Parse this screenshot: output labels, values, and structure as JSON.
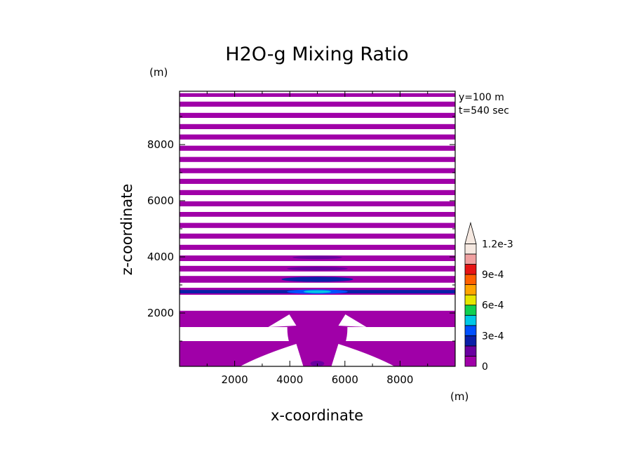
{
  "chart_data": {
    "type": "heatmap",
    "title": "H2O-g Mixing Ratio",
    "xlabel": "x-coordinate",
    "ylabel": "z-coordinate",
    "x_unit": "(m)",
    "y_unit": "(m)",
    "annotation_lines": [
      "y=100 m",
      "t=540 sec"
    ],
    "xlim": [
      0,
      10000
    ],
    "ylim": [
      100,
      9900
    ],
    "x_ticks": [
      2000,
      4000,
      6000,
      8000
    ],
    "y_ticks": [
      2000,
      4000,
      6000,
      8000
    ],
    "x_tick_labels": [
      "2000",
      "4000",
      "6000",
      "8000"
    ],
    "y_tick_labels": [
      "2000",
      "4000",
      "6000",
      "8000"
    ],
    "colorbar": {
      "levels": [
        0,
        0.00015,
        0.0003,
        0.00045,
        0.0006,
        0.00075,
        0.0009,
        0.00105,
        0.0012,
        0.00135
      ],
      "colors": [
        "#a000a8",
        "#6a00a0",
        "#0a1fa8",
        "#0050ff",
        "#00c8e6",
        "#10d050",
        "#e6e600",
        "#ffa500",
        "#ff6000",
        "#e61414",
        "#f0a0a0",
        "#f5e8e0"
      ],
      "labels": [
        "0",
        "3e-4",
        "6e-4",
        "9e-4",
        "1.2e-3"
      ],
      "extend": "max"
    },
    "bands": [
      {
        "z": [
          9700,
          9830
        ],
        "color": "#a000a8"
      },
      {
        "z": [
          9350,
          9530
        ],
        "color": "#a000a8"
      },
      {
        "z": [
          8950,
          9130
        ],
        "color": "#a000a8"
      },
      {
        "z": [
          8550,
          8730
        ],
        "color": "#a000a8"
      },
      {
        "z": [
          8180,
          8360
        ],
        "color": "#a000a8"
      },
      {
        "z": [
          7780,
          7960
        ],
        "color": "#a000a8"
      },
      {
        "z": [
          7380,
          7560
        ],
        "color": "#a000a8"
      },
      {
        "z": [
          6980,
          7160
        ],
        "color": "#a000a8"
      },
      {
        "z": [
          6600,
          6780
        ],
        "color": "#a000a8"
      },
      {
        "z": [
          6200,
          6380
        ],
        "color": "#a000a8"
      },
      {
        "z": [
          5800,
          5980
        ],
        "color": "#a000a8"
      },
      {
        "z": [
          5430,
          5600
        ],
        "color": "#a000a8"
      },
      {
        "z": [
          5030,
          5210
        ],
        "color": "#a000a8"
      },
      {
        "z": [
          4650,
          4830
        ],
        "color": "#a000a8"
      },
      {
        "z": [
          4250,
          4430
        ],
        "color": "#a000a8"
      },
      {
        "z": [
          3850,
          4050
        ],
        "color": "#a000a8"
      },
      {
        "z": [
          3480,
          3680
        ],
        "color": "#a000a8"
      },
      {
        "z": [
          3080,
          3320
        ],
        "color": "#a000a8"
      },
      {
        "z": [
          2650,
          2900
        ],
        "color": "#a000a8"
      },
      {
        "z": [
          1500,
          2080
        ],
        "color": "#a000a8"
      },
      {
        "z": [
          100,
          1000
        ],
        "color": "#a000a8"
      }
    ],
    "features": [
      {
        "x": 5000,
        "z": 3980,
        "rx": 900,
        "rz": 60,
        "color": "#6a00a0"
      },
      {
        "x": 5000,
        "z": 3580,
        "rx": 1100,
        "rz": 70,
        "color": "#6a00a0"
      },
      {
        "x": 5000,
        "z": 3200,
        "rx": 1300,
        "rz": 90,
        "color": "#0a1fa8"
      },
      {
        "x": 0,
        "z": 2760,
        "rx": 10000,
        "rz": 60,
        "color": "#0a1fa8"
      },
      {
        "x": 5000,
        "z": 2760,
        "rx": 1100,
        "rz": 80,
        "color": "#0050ff"
      },
      {
        "x": 5000,
        "z": 2760,
        "rx": 500,
        "rz": 50,
        "color": "#00c8e6"
      },
      {
        "x": 5000,
        "z": 200,
        "rx": 250,
        "rz": 100,
        "color": "#6a00a0"
      }
    ]
  }
}
